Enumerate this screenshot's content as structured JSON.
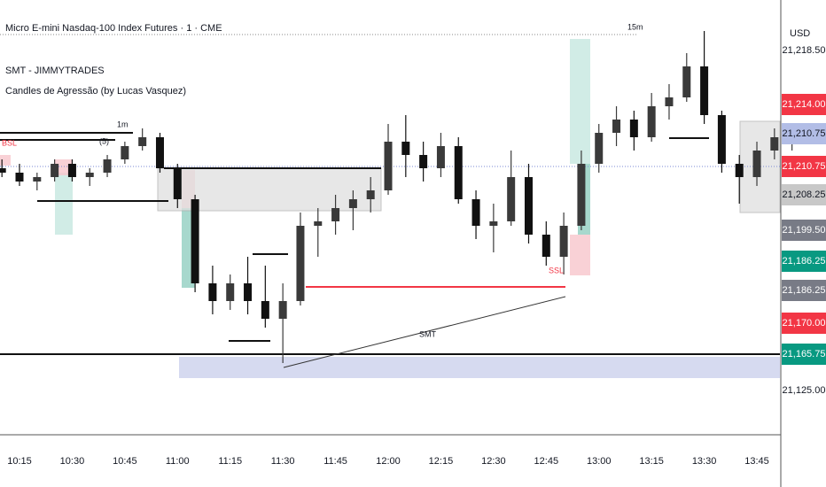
{
  "chart_data": {
    "type": "candlestick",
    "title": "Micro E-mini Nasdaq-100 Index Futures · 1 · CME",
    "indicators": [
      "SMT - JIMMYTRADES",
      "Candles de Agressão (by Lucas Vasquez)"
    ],
    "currency": "USD",
    "annotations": {
      "htf": "15m",
      "ltf": "1m",
      "bsl": "BSL",
      "ssl": "SSL",
      "smt": "SMT",
      "count": "(5)"
    },
    "up_color": "#3a3a3a",
    "down_color": "#111111",
    "categories": [
      null,
      "10:15",
      null,
      null,
      "10:30",
      null,
      null,
      "10:45",
      null,
      null,
      "11:00",
      null,
      null,
      "11:15",
      null,
      null,
      "11:30",
      null,
      null,
      "11:45",
      null,
      null,
      "12:00",
      null,
      null,
      "12:15",
      null,
      null,
      "12:30",
      null,
      null,
      "12:45",
      null,
      null,
      "13:00",
      null,
      null,
      "13:15",
      null,
      null,
      "13:30",
      null,
      null,
      "13:45",
      null,
      null
    ],
    "open": [
      21208.25,
      21207.25,
      21205.25,
      21206.25,
      21209.25,
      21206.25,
      21207.25,
      21210.25,
      21213.25,
      21215.25,
      21208.25,
      21201.25,
      21182.25,
      21178.25,
      21182.25,
      21178.25,
      21174.25,
      21178.25,
      21195.25,
      21196.25,
      21199.25,
      21201.25,
      21203.25,
      21214.25,
      21211.25,
      21208.25,
      21213.25,
      21201.25,
      21195.25,
      21196.25,
      21206.25,
      21193.25,
      21188.25,
      21195.25,
      21209.25,
      21216.25,
      21219.25,
      21215.25,
      21222.25,
      21224.25,
      21231.25,
      21220.25,
      21209.25,
      21206.25,
      21212.25,
      21215.25
    ],
    "high": [
      21210.25,
      21209.25,
      21207.25,
      21210.25,
      21210.25,
      21208.25,
      21211.25,
      21214.25,
      21217.25,
      21216.25,
      21209.25,
      21202.25,
      21186.25,
      21184.25,
      21188.25,
      21186.25,
      21182.25,
      21198.25,
      21199.25,
      21202.25,
      21203.25,
      21206.25,
      21218.25,
      21220.25,
      21214.25,
      21216.25,
      21215.25,
      21203.25,
      21200.25,
      21212.25,
      21209.25,
      21196.25,
      21198.25,
      21212.25,
      21218.25,
      21222.25,
      21221.25,
      21225.25,
      21227.25,
      21234.25,
      21239.25,
      21221.25,
      21211.25,
      21214.25,
      21217.25,
      21218.25
    ],
    "low": [
      21206.25,
      21204.25,
      21203.25,
      21205.25,
      21205.25,
      21204.25,
      21206.25,
      21209.25,
      21212.25,
      21207.25,
      21199.25,
      21180.25,
      21175.25,
      21176.25,
      21175.25,
      21172.25,
      21164.25,
      21177.25,
      21188.25,
      21193.25,
      21194.25,
      21198.25,
      21202.25,
      21206.25,
      21205.25,
      21206.25,
      21200.25,
      21192.25,
      21189.25,
      21195.25,
      21191.25,
      21186.25,
      21184.25,
      21194.25,
      21207.25,
      21213.25,
      21212.25,
      21214.25,
      21219.25,
      21223.25,
      21218.25,
      21207.25,
      21200.25,
      21204.25,
      21210.25,
      21212.25
    ],
    "close": [
      21207.25,
      21205.25,
      21206.25,
      21209.25,
      21206.25,
      21207.25,
      21210.25,
      21213.25,
      21215.25,
      21208.25,
      21201.25,
      21182.25,
      21178.25,
      21182.25,
      21178.25,
      21174.25,
      21178.25,
      21195.25,
      21196.25,
      21199.25,
      21201.25,
      21203.25,
      21214.25,
      21211.25,
      21208.25,
      21213.25,
      21201.25,
      21195.25,
      21196.25,
      21206.25,
      21193.25,
      21188.25,
      21195.25,
      21209.25,
      21216.25,
      21219.25,
      21215.25,
      21222.25,
      21224.25,
      21231.25,
      21220.25,
      21209.25,
      21206.25,
      21212.25,
      21215.25,
      21216.25
    ],
    "ylim": [
      21148.25,
      21246.25
    ],
    "price_labels": [
      {
        "label": "21,218.50",
        "color": null
      },
      {
        "label": "21,214.00",
        "color": "#f23645"
      },
      {
        "label": "21,210.75",
        "color": "#b2bde6"
      },
      {
        "label": "21,210.75",
        "color": "#f23645"
      },
      {
        "label": "21,208.25",
        "color": "#c8c8c8"
      },
      {
        "label": "21,199.50",
        "color": "#787b86"
      },
      {
        "label": "21,186.25",
        "color": "#089981"
      },
      {
        "label": "21,186.25",
        "color": "#787b86"
      },
      {
        "label": "21,170.00",
        "color": "#f23645"
      },
      {
        "label": "21,165.75",
        "color": "#089981"
      },
      {
        "label": "21,125.00",
        "color": null
      }
    ]
  }
}
